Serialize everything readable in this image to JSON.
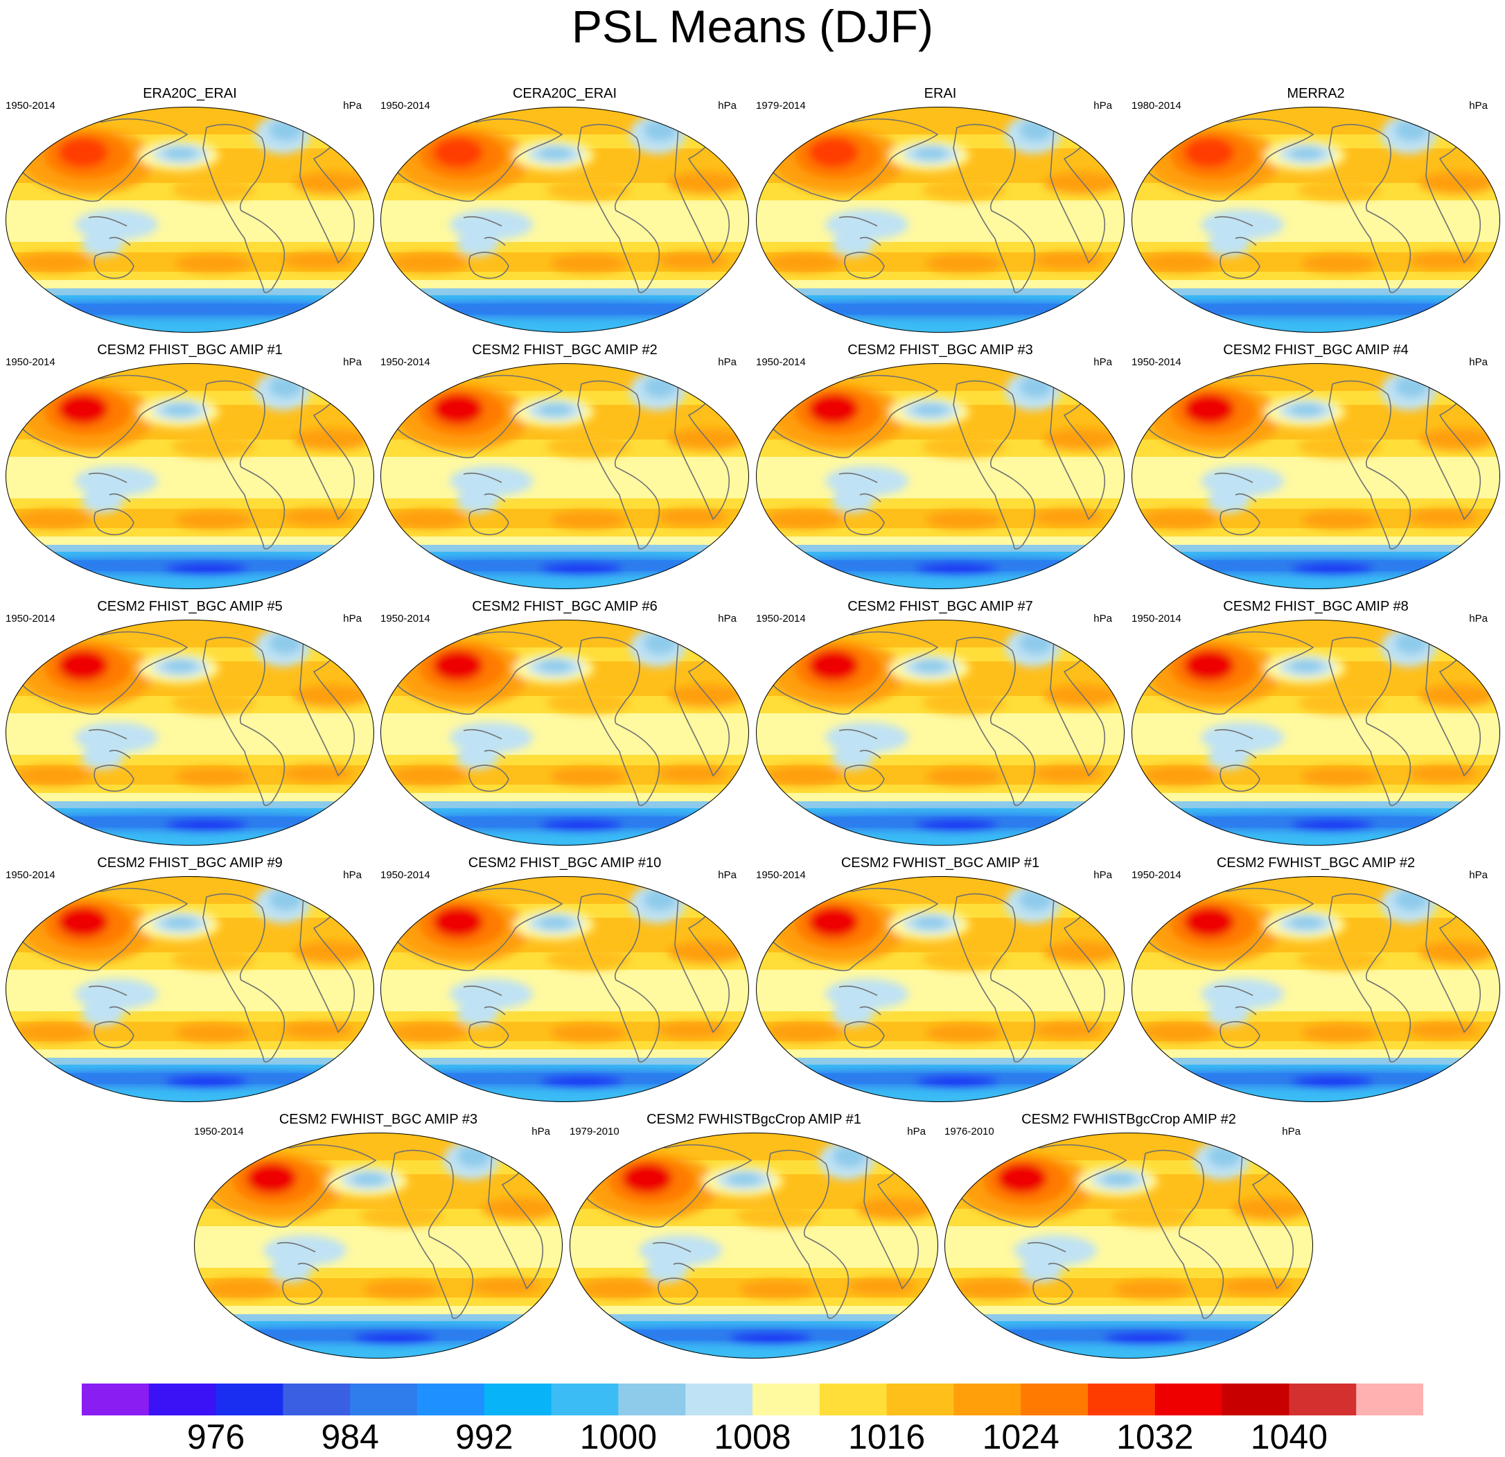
{
  "chart_data": {
    "type": "map-panels",
    "title": "PSL Means (DJF)",
    "units": "hPa",
    "projection": "Robinson (global, Pacific-centered)",
    "panels": [
      {
        "name": "ERA20C_ERAI",
        "years": "1950-2014",
        "units": "hPa"
      },
      {
        "name": "CERA20C_ERAI",
        "years": "1950-2014",
        "units": "hPa"
      },
      {
        "name": "ERAI",
        "years": "1979-2014",
        "units": "hPa"
      },
      {
        "name": "MERRA2",
        "years": "1980-2014",
        "units": "hPa"
      },
      {
        "name": "CESM2 FHIST_BGC AMIP #1",
        "years": "1950-2014",
        "units": "hPa"
      },
      {
        "name": "CESM2 FHIST_BGC AMIP #2",
        "years": "1950-2014",
        "units": "hPa"
      },
      {
        "name": "CESM2 FHIST_BGC AMIP #3",
        "years": "1950-2014",
        "units": "hPa"
      },
      {
        "name": "CESM2 FHIST_BGC AMIP #4",
        "years": "1950-2014",
        "units": "hPa"
      },
      {
        "name": "CESM2 FHIST_BGC AMIP #5",
        "years": "1950-2014",
        "units": "hPa"
      },
      {
        "name": "CESM2 FHIST_BGC AMIP #6",
        "years": "1950-2014",
        "units": "hPa"
      },
      {
        "name": "CESM2 FHIST_BGC AMIP #7",
        "years": "1950-2014",
        "units": "hPa"
      },
      {
        "name": "CESM2 FHIST_BGC AMIP #8",
        "years": "1950-2014",
        "units": "hPa"
      },
      {
        "name": "CESM2 FHIST_BGC AMIP #9",
        "years": "1950-2014",
        "units": "hPa"
      },
      {
        "name": "CESM2 FHIST_BGC AMIP #10",
        "years": "1950-2014",
        "units": "hPa"
      },
      {
        "name": "CESM2 FWHIST_BGC AMIP #1",
        "years": "1950-2014",
        "units": "hPa"
      },
      {
        "name": "CESM2 FWHIST_BGC AMIP #2",
        "years": "1950-2014",
        "units": "hPa"
      },
      {
        "name": "CESM2 FWHIST_BGC AMIP #3",
        "years": "1950-2014",
        "units": "hPa"
      },
      {
        "name": "CESM2 FWHISTBgcCrop AMIP #1",
        "years": "1979-2010",
        "units": "hPa"
      },
      {
        "name": "CESM2 FWHISTBgcCrop AMIP #2",
        "years": "1976-2010",
        "units": "hPa"
      }
    ],
    "colorbar": {
      "labels": [
        "976",
        "984",
        "992",
        "1000",
        "1008",
        "1016",
        "1024",
        "1032",
        "1040"
      ],
      "levels": [
        972,
        976,
        980,
        984,
        988,
        992,
        996,
        1000,
        1004,
        1008,
        1012,
        1016,
        1020,
        1024,
        1028,
        1032,
        1036,
        1040,
        1044
      ],
      "colors": [
        "#8a1df2",
        "#3b12f5",
        "#1a2ef2",
        "#3a5fe3",
        "#2f7cec",
        "#1e90ff",
        "#08b3f8",
        "#3bbcf5",
        "#8ecbeb",
        "#bfe2f4",
        "#fff9a0",
        "#ffde3a",
        "#ffbf1a",
        "#ff9f0a",
        "#ff7a00",
        "#ff3c00",
        "#ee0000",
        "#c80000",
        "#d43030",
        "#ffb0b0"
      ]
    }
  }
}
